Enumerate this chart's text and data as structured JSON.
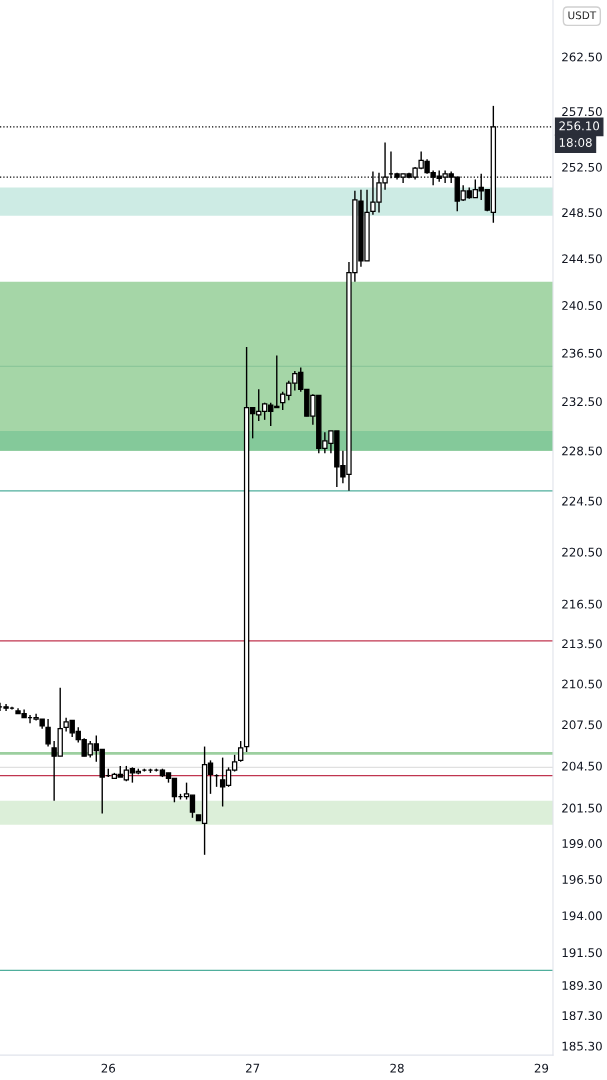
{
  "chart_data": {
    "type": "candlestick",
    "x": [
      25.25,
      25.292,
      25.333,
      25.375,
      25.417,
      25.458,
      25.5,
      25.542,
      25.583,
      25.625,
      25.667,
      25.708,
      25.75,
      25.792,
      25.833,
      25.875,
      25.917,
      25.958,
      26,
      26.042,
      26.083,
      26.125,
      26.167,
      26.208,
      26.25,
      26.292,
      26.333,
      26.375,
      26.417,
      26.458,
      26.5,
      26.542,
      26.583,
      26.625,
      26.667,
      26.708,
      26.75,
      26.792,
      26.833,
      26.875,
      26.917,
      26.958,
      27,
      27.042,
      27.083,
      27.125,
      27.167,
      27.208,
      27.25,
      27.292,
      27.333,
      27.375,
      27.417,
      27.458,
      27.5,
      27.542,
      27.583,
      27.625,
      27.667,
      27.708,
      27.75,
      27.792,
      27.833,
      27.875,
      27.917,
      27.958,
      28,
      28.042,
      28.083,
      28.125,
      28.167,
      28.208,
      28.25,
      28.292,
      28.333,
      28.375,
      28.417,
      28.458,
      28.5,
      28.542,
      28.583,
      28.625,
      28.667
    ],
    "ohlc": [
      [
        208.8,
        209.1,
        208.5,
        208.8
      ],
      [
        208.8,
        209.0,
        208.5,
        208.7
      ],
      [
        208.7,
        208.8,
        208.6,
        208.7
      ],
      [
        208.5,
        208.7,
        208.3,
        208.3
      ],
      [
        208.3,
        208.6,
        208.0,
        208.0
      ],
      [
        208.0,
        208.2,
        207.6,
        208.0
      ],
      [
        207.9,
        208.3,
        207.8,
        208.0
      ],
      [
        207.9,
        207.9,
        207.2,
        207.4
      ],
      [
        207.3,
        207.9,
        205.9,
        206.1
      ],
      [
        205.8,
        206.3,
        202.0,
        205.2
      ],
      [
        205.2,
        210.2,
        205.2,
        207.2
      ],
      [
        207.3,
        208.0,
        207.0,
        207.7
      ],
      [
        207.8,
        207.8,
        206.6,
        206.9
      ],
      [
        207.0,
        207.3,
        206.2,
        206.4
      ],
      [
        206.4,
        206.5,
        205.2,
        205.2
      ],
      [
        205.3,
        206.3,
        205.1,
        206.1
      ],
      [
        206.1,
        206.7,
        204.8,
        205.6
      ],
      [
        205.7,
        205.7,
        201.1,
        203.7
      ],
      [
        203.8,
        204.3,
        203.7,
        203.8
      ],
      [
        203.6,
        204.0,
        203.6,
        203.9
      ],
      [
        203.9,
        204.5,
        203.7,
        203.7
      ],
      [
        203.5,
        204.5,
        203.4,
        204.2
      ],
      [
        204.3,
        204.4,
        203.3,
        204.0
      ],
      [
        204.0,
        204.3,
        203.9,
        204.1
      ],
      [
        204.2,
        204.3,
        204.1,
        204.2
      ],
      [
        204.2,
        204.3,
        204.0,
        204.2
      ],
      [
        204.2,
        204.3,
        204.1,
        204.2
      ],
      [
        204.2,
        204.3,
        203.7,
        203.8
      ],
      [
        204.0,
        204.0,
        203.3,
        203.6
      ],
      [
        203.6,
        203.6,
        201.9,
        202.3
      ],
      [
        202.3,
        202.5,
        202.1,
        202.3
      ],
      [
        202.3,
        203.3,
        202.1,
        202.5
      ],
      [
        202.4,
        202.4,
        200.8,
        201.2
      ],
      [
        201.0,
        201.0,
        200.6,
        200.6
      ],
      [
        200.4,
        205.9,
        198.2,
        204.6
      ],
      [
        204.7,
        204.9,
        202.5,
        203.9
      ],
      [
        203.8,
        203.9,
        203.0,
        203.8
      ],
      [
        203.5,
        205.1,
        201.6,
        203.0
      ],
      [
        203.1,
        204.4,
        203.0,
        204.2
      ],
      [
        204.2,
        205.3,
        204.1,
        204.8
      ],
      [
        204.9,
        206.3,
        204.8,
        205.8
      ],
      [
        205.9,
        237.0,
        205.5,
        232.0
      ],
      [
        232.0,
        232.0,
        229.5,
        231.5
      ],
      [
        231.4,
        233.5,
        230.9,
        231.7
      ],
      [
        231.7,
        232.4,
        231.0,
        232.3
      ],
      [
        232.2,
        232.4,
        230.5,
        231.7
      ],
      [
        232.0,
        236.3,
        232.0,
        232.1
      ],
      [
        232.4,
        233.3,
        231.8,
        233.1
      ],
      [
        233.0,
        234.2,
        232.6,
        234.0
      ],
      [
        234.0,
        235.0,
        233.4,
        234.8
      ],
      [
        234.9,
        235.3,
        233.3,
        233.5
      ],
      [
        233.5,
        233.5,
        231.3,
        231.3
      ],
      [
        231.3,
        233.1,
        230.6,
        233.0
      ],
      [
        233.0,
        233.0,
        228.3,
        228.7
      ],
      [
        228.7,
        230.0,
        228.3,
        229.3
      ],
      [
        229.1,
        230.1,
        228.3,
        230.1
      ],
      [
        230.1,
        230.1,
        225.6,
        227.2
      ],
      [
        227.3,
        228.5,
        225.9,
        226.4
      ],
      [
        226.6,
        244.2,
        225.3,
        243.3
      ],
      [
        243.3,
        250.4,
        242.5,
        249.6
      ],
      [
        249.5,
        250.5,
        243.8,
        244.3
      ],
      [
        244.3,
        250.5,
        244.3,
        248.5
      ],
      [
        248.6,
        252.1,
        248.3,
        249.4
      ],
      [
        249.4,
        252.0,
        248.5,
        251.1
      ],
      [
        251.1,
        254.7,
        250.5,
        251.6
      ],
      [
        251.9,
        253.9,
        251.5,
        251.9
      ],
      [
        251.9,
        252.0,
        251.4,
        251.6
      ],
      [
        251.6,
        251.9,
        251.1,
        251.9
      ],
      [
        251.9,
        252.0,
        251.5,
        251.6
      ],
      [
        251.6,
        252.5,
        251.4,
        252.4
      ],
      [
        252.4,
        253.9,
        252.3,
        253.1
      ],
      [
        253.0,
        253.2,
        251.9,
        252.0
      ],
      [
        252.0,
        252.2,
        250.9,
        251.6
      ],
      [
        251.7,
        252.2,
        251.2,
        251.5
      ],
      [
        251.6,
        252.2,
        251.1,
        251.9
      ],
      [
        251.9,
        252.1,
        251.1,
        251.6
      ],
      [
        251.6,
        251.6,
        248.6,
        249.5
      ],
      [
        249.6,
        250.9,
        249.5,
        250.4
      ],
      [
        250.4,
        250.7,
        249.7,
        249.8
      ],
      [
        249.8,
        251.4,
        249.8,
        250.5
      ],
      [
        250.7,
        251.9,
        249.6,
        250.4
      ],
      [
        250.5,
        250.5,
        248.6,
        248.7
      ],
      [
        248.5,
        258.0,
        247.6,
        256.1
      ]
    ],
    "xlim": [
      25.25,
      29.08
    ],
    "xticks": [
      26,
      27,
      28,
      29
    ],
    "log": "y",
    "ylim": [
      184.7,
      267.8
    ],
    "yticks": [
      {
        "value": 262.5,
        "label": "262.50"
      },
      {
        "value": 257.5,
        "label": "257.50"
      },
      {
        "value": 252.5,
        "label": "252.50"
      },
      {
        "value": 248.5,
        "label": "248.50"
      },
      {
        "value": 244.5,
        "label": "244.50"
      },
      {
        "value": 240.5,
        "label": "240.50"
      },
      {
        "value": 236.5,
        "label": "236.50"
      },
      {
        "value": 232.5,
        "label": "232.50"
      },
      {
        "value": 228.5,
        "label": "228.50"
      },
      {
        "value": 224.5,
        "label": "224.50"
      },
      {
        "value": 220.5,
        "label": "220.50"
      },
      {
        "value": 216.5,
        "label": "216.50"
      },
      {
        "value": 213.5,
        "label": "213.50"
      },
      {
        "value": 210.5,
        "label": "210.50"
      },
      {
        "value": 207.5,
        "label": "207.50"
      },
      {
        "value": 204.5,
        "label": "204.50"
      },
      {
        "value": 201.5,
        "label": "201.50"
      },
      {
        "value": 199,
        "label": "199.00"
      },
      {
        "value": 196.5,
        "label": "196.50"
      },
      {
        "value": 194,
        "label": "194.00"
      },
      {
        "value": 191.5,
        "label": "191.50"
      },
      {
        "value": 189.3,
        "label": "189.30"
      },
      {
        "value": 187.3,
        "label": "187.30"
      },
      {
        "value": 185.3,
        "label": "185.30"
      }
    ],
    "bands": [
      {
        "axis": "y",
        "from": 228.5,
        "to": 242.5,
        "color": "#a5d6a7"
      },
      {
        "axis": "y",
        "from": 228.5,
        "to": 230.1,
        "color": "#84c99a"
      },
      {
        "axis": "y",
        "from": 248.2,
        "to": 250.7,
        "color": "#cdebe4"
      },
      {
        "axis": "y",
        "from": 200.3,
        "to": 202.0,
        "color": "#dcefd9"
      },
      {
        "axis": "y",
        "from": 205.3,
        "to": 205.5,
        "color": "#9ccf9f"
      }
    ],
    "ref_lines": [
      {
        "axis": "y",
        "value": 225.3,
        "color": "#4fae9c",
        "line_style": "solid"
      },
      {
        "axis": "y",
        "value": 213.7,
        "color": "#c0354f",
        "line_style": "solid"
      },
      {
        "axis": "y",
        "value": 203.8,
        "color": "#c0354f",
        "line_style": "solid"
      },
      {
        "axis": "y",
        "value": 190.3,
        "color": "#4fae9c",
        "line_style": "solid"
      },
      {
        "axis": "y",
        "value": 235.4,
        "color": "#8cc79a",
        "line_style": "solid"
      },
      {
        "axis": "y",
        "value": 204.4,
        "color": "#e0e0e0",
        "line_style": "solid"
      },
      {
        "axis": "y",
        "value": 251.6,
        "color": "#000000",
        "line_style": "dotted"
      },
      {
        "axis": "y",
        "value": 256.1,
        "color": "#000000",
        "line_style": "dotted",
        "label": "256.10"
      }
    ],
    "annotations": [
      "USDT",
      "18:08"
    ],
    "grid": false,
    "legend": false
  }
}
